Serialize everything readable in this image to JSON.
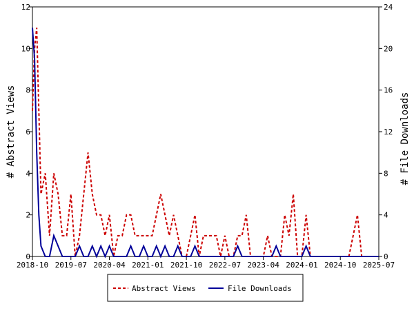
{
  "chart_data": {
    "type": "line",
    "title": "",
    "ylabel_left": "# Abstract Views",
    "ylabel_right": "# File Downloads",
    "x_ticks": [
      "2018-10",
      "2019-07",
      "2020-04",
      "2021-01",
      "2021-10",
      "2022-07",
      "2023-04",
      "2024-01",
      "2024-10",
      "2025-07"
    ],
    "x_range": [
      0,
      81
    ],
    "ylim_left": [
      0,
      12
    ],
    "yticks_left": [
      "0",
      "2",
      "4",
      "6",
      "8",
      "10",
      "12"
    ],
    "ylim_right": [
      0,
      24
    ],
    "yticks_right": [
      "0",
      "4",
      "8",
      "12",
      "16",
      "20",
      "24"
    ],
    "grid": false,
    "legend_position": "bottom-center",
    "colors": {
      "views": "#cc0000",
      "downloads": "#000099"
    },
    "series": [
      {
        "name": "Abstract Views",
        "axis": "left",
        "style": "dashed",
        "x": [
          0,
          0.5,
          1,
          1.5,
          2,
          3,
          4,
          5,
          6,
          7,
          8,
          9,
          10,
          11,
          12,
          13,
          14,
          15,
          16,
          17,
          18,
          19,
          20,
          21,
          22,
          23,
          24,
          25,
          26,
          27,
          28,
          29,
          30,
          31,
          32,
          33,
          34,
          35,
          36,
          37,
          38,
          39,
          40,
          41,
          42,
          43,
          44,
          45,
          46,
          47,
          48,
          49,
          50,
          51,
          52,
          53,
          54,
          55,
          56,
          57,
          58,
          59,
          60,
          61,
          62,
          63,
          64,
          65,
          66,
          67,
          68,
          69,
          70,
          71,
          72,
          73,
          74,
          75,
          76,
          77,
          78,
          79,
          80,
          81
        ],
        "values": [
          7,
          10,
          11,
          7,
          3,
          4,
          1,
          4,
          3,
          1,
          1,
          3,
          0,
          1,
          3,
          5,
          3,
          2,
          2,
          1,
          2,
          0,
          1,
          1,
          2,
          2,
          1,
          1,
          1,
          1,
          1,
          2,
          3,
          2,
          1,
          2,
          1,
          0,
          0,
          1,
          2,
          0,
          1,
          1,
          1,
          1,
          0,
          1,
          0,
          0,
          1,
          1,
          2,
          0,
          0,
          0,
          0,
          1,
          0,
          0,
          0,
          2,
          1,
          3,
          0,
          0,
          2,
          0,
          0,
          0,
          0,
          0,
          0,
          0,
          0,
          0,
          0,
          1,
          2,
          0,
          0,
          0,
          0,
          0
        ],
        "type": "line"
      },
      {
        "name": "File Downloads",
        "axis": "right",
        "style": "solid",
        "x": [
          0,
          0.5,
          1,
          1.5,
          2,
          3,
          4,
          5,
          6,
          7,
          8,
          9,
          10,
          11,
          12,
          13,
          14,
          15,
          16,
          17,
          18,
          19,
          20,
          21,
          22,
          23,
          24,
          25,
          26,
          27,
          28,
          29,
          30,
          31,
          32,
          33,
          34,
          35,
          36,
          37,
          38,
          39,
          40,
          41,
          42,
          43,
          44,
          45,
          46,
          47,
          48,
          49,
          50,
          51,
          52,
          53,
          54,
          55,
          56,
          57,
          58,
          59,
          60,
          61,
          62,
          63,
          64,
          65,
          66,
          67,
          68,
          69,
          70,
          71,
          72,
          73,
          74,
          75,
          76,
          77,
          78,
          79,
          80,
          81
        ],
        "values": [
          22,
          19,
          10,
          4,
          1,
          0,
          0,
          2,
          1,
          0,
          0,
          0,
          0,
          1,
          0,
          0,
          1,
          0,
          1,
          0,
          1,
          0,
          0,
          0,
          0,
          1,
          0,
          0,
          1,
          0,
          0,
          1,
          0,
          1,
          0,
          0,
          1,
          0,
          0,
          0,
          1,
          0,
          0,
          0,
          0,
          0,
          0,
          0,
          0,
          0,
          1,
          0,
          0,
          0,
          0,
          0,
          0,
          0,
          0,
          1,
          0,
          0,
          0,
          0,
          0,
          0,
          1,
          0,
          0,
          0,
          0,
          0,
          0,
          0,
          0,
          0,
          0,
          0,
          0,
          0,
          0,
          0,
          0,
          0
        ],
        "type": "line"
      }
    ],
    "legend": [
      {
        "label": "Abstract Views",
        "series": 0
      },
      {
        "label": "File Downloads",
        "series": 1
      }
    ]
  }
}
